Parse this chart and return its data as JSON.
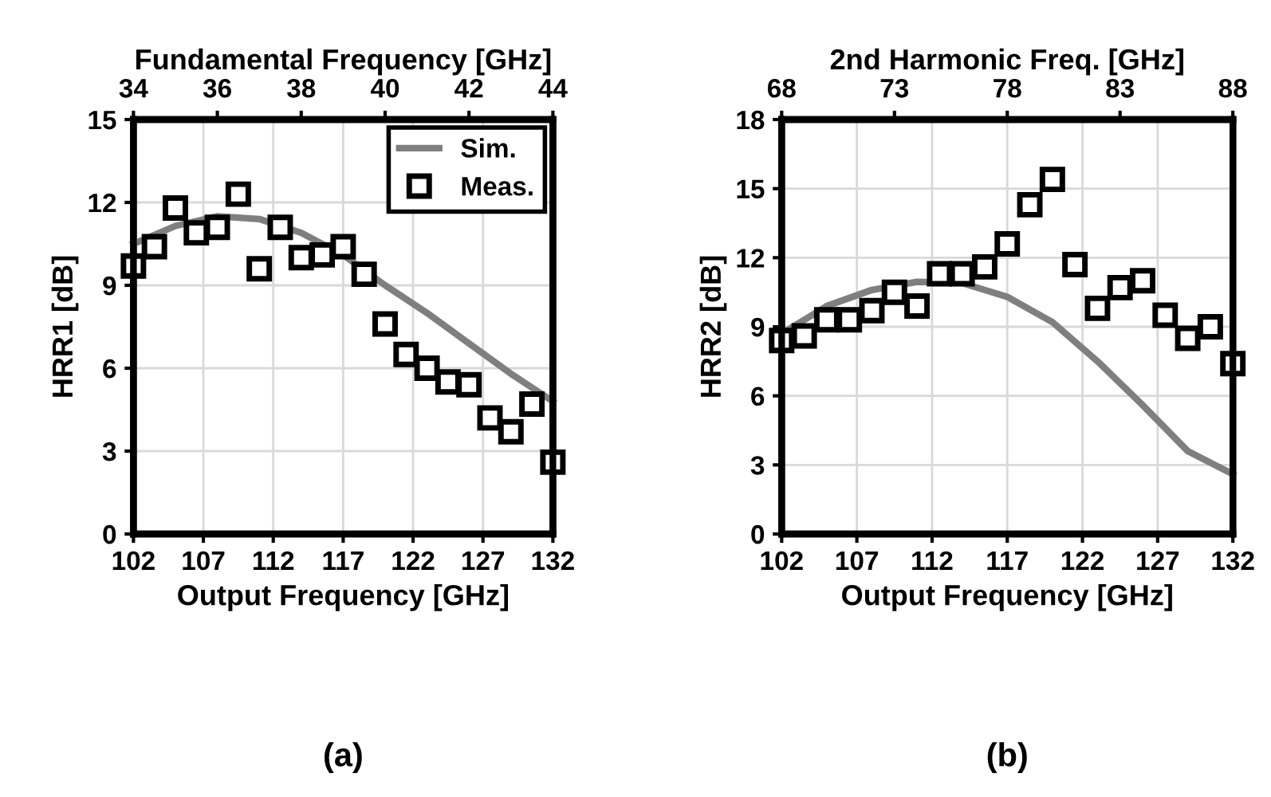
{
  "chart_data": [
    {
      "type": "scatter",
      "x2label": "Fundamental Frequency [GHz]",
      "xlabel": "Output Frequency [GHz]",
      "ylabel": "HRR1 [dB]",
      "xlim": [
        102,
        132
      ],
      "xticks": [
        102,
        107,
        112,
        117,
        122,
        127,
        132
      ],
      "x2lim": [
        34,
        44
      ],
      "x2ticks": [
        34,
        36,
        38,
        40,
        42,
        44
      ],
      "ylim": [
        0,
        15
      ],
      "yticks": [
        0,
        3,
        6,
        9,
        12,
        15
      ],
      "grid": true,
      "legend": "top right",
      "annotations": [
        "(a)"
      ],
      "series": [
        {
          "name": "Sim.",
          "type": "line",
          "color": "#7f7f7f",
          "marker": "none",
          "x": [
            102,
            105,
            108,
            111,
            114,
            117,
            120,
            123,
            126,
            129,
            132
          ],
          "values": [
            10.5,
            11.15,
            11.5,
            11.4,
            10.9,
            10.1,
            9.0,
            8.0,
            6.9,
            5.8,
            4.8
          ]
        },
        {
          "name": "Meas.",
          "color": "#000000",
          "marker": "square",
          "x": [
            102,
            103.5,
            105,
            106.5,
            108,
            109.5,
            111,
            112.5,
            114,
            115.5,
            117,
            118.5,
            120,
            121.5,
            123,
            124.5,
            126,
            127.5,
            129,
            130.5,
            132
          ],
          "values": [
            9.7,
            10.4,
            11.8,
            10.9,
            11.1,
            12.3,
            9.6,
            11.1,
            10.0,
            10.1,
            10.4,
            9.4,
            7.6,
            6.5,
            6.0,
            5.5,
            5.4,
            4.2,
            3.7,
            4.7,
            2.6
          ]
        }
      ]
    },
    {
      "type": "scatter",
      "x2label": "2nd Harmonic Freq. [GHz]",
      "xlabel": "Output Frequency [GHz]",
      "ylabel": "HRR2 [dB]",
      "xlim": [
        102,
        132
      ],
      "xticks": [
        102,
        107,
        112,
        117,
        122,
        127,
        132
      ],
      "x2lim": [
        68,
        88
      ],
      "x2ticks": [
        68,
        73,
        78,
        83,
        88
      ],
      "ylim": [
        0,
        18
      ],
      "yticks": [
        0,
        3,
        6,
        9,
        12,
        15,
        18
      ],
      "grid": true,
      "annotations": [
        "(b)"
      ],
      "series": [
        {
          "type": "line",
          "color": "#7f7f7f",
          "marker": "none",
          "x": [
            102,
            105,
            108,
            111,
            114,
            117,
            120,
            123,
            126,
            129,
            132
          ],
          "values": [
            8.7,
            9.9,
            10.6,
            10.95,
            10.9,
            10.3,
            9.2,
            7.5,
            5.6,
            3.6,
            2.6
          ]
        },
        {
          "color": "#000000",
          "marker": "square",
          "x": [
            102,
            103.5,
            105,
            106.5,
            108,
            109.5,
            111,
            112.5,
            114,
            115.5,
            117,
            118.5,
            120,
            121.5,
            123,
            124.5,
            126,
            127.5,
            129,
            130.5,
            132
          ],
          "values": [
            8.4,
            8.6,
            9.3,
            9.3,
            9.7,
            10.5,
            9.9,
            11.3,
            11.3,
            11.6,
            12.6,
            14.3,
            15.4,
            11.7,
            9.8,
            10.7,
            11.0,
            9.5,
            8.5,
            9.0,
            7.4
          ]
        }
      ]
    }
  ]
}
